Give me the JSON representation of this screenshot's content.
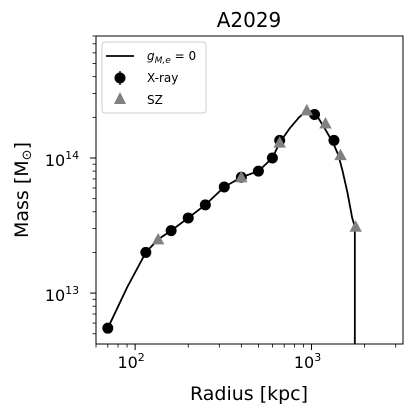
{
  "chart_data": {
    "type": "line",
    "title": "A2029",
    "xlabel": "Radius [kpc]",
    "ylabel": "Mass [M",
    "ylabel_symbol": "⊙",
    "ylabel_close": "]",
    "xscale": "log",
    "yscale": "log",
    "xlim": [
      60,
      3300
    ],
    "ylim": [
      4200000000000.0,
      800000000000000.0
    ],
    "grid": false,
    "legend_placement": "top-left",
    "x_ticks": [
      {
        "value": 100,
        "base": "10",
        "exp": "2"
      },
      {
        "value": 1000,
        "base": "10",
        "exp": "3"
      }
    ],
    "y_ticks": [
      {
        "value": 10000000000000.0,
        "base": "10",
        "exp": "13"
      },
      {
        "value": 100000000000000.0,
        "base": "10",
        "exp": "14"
      }
    ],
    "legend": [
      {
        "label": "g",
        "label_sub": "M,e",
        "label_rest": " = 0",
        "marker": "line",
        "color": "#000000"
      },
      {
        "label": "X-ray",
        "marker": "circle",
        "color": "#000000"
      },
      {
        "label": "SZ",
        "marker": "triangle",
        "color": "#808080"
      }
    ],
    "series": [
      {
        "name": "g",
        "style": "line",
        "color": "#000000",
        "x": [
          70,
          90,
          115,
          135,
          160,
          200,
          250,
          320,
          400,
          500,
          600,
          660,
          750,
          850,
          940,
          1020,
          1100,
          1180,
          1260,
          1340,
          1420,
          1500,
          1600,
          1700,
          1760,
          1760
        ],
        "y": [
          5500000000000.0,
          11000000000000.0,
          20000000000000.0,
          25000000000000.0,
          29000000000000.0,
          36000000000000.0,
          45000000000000.0,
          61000000000000.0,
          72000000000000.0,
          80000000000000.0,
          100000000000000.0,
          130000000000000.0,
          165000000000000.0,
          200000000000000.0,
          225000000000000.0,
          220000000000000.0,
          195000000000000.0,
          168000000000000.0,
          145000000000000.0,
          125000000000000.0,
          105000000000000.0,
          80000000000000.0,
          55000000000000.0,
          36000000000000.0,
          31000000000000.0,
          4200000000000.0
        ]
      },
      {
        "name": "X-ray",
        "style": "scatter",
        "marker": "circle",
        "color": "#000000",
        "x": [
          70,
          115,
          160,
          200,
          250,
          320,
          400,
          500,
          600,
          660,
          1040,
          1340
        ],
        "y": [
          5500000000000.0,
          20000000000000.0,
          29000000000000.0,
          36000000000000.0,
          45000000000000.0,
          61000000000000.0,
          72000000000000.0,
          80000000000000.0,
          100000000000000.0,
          135000000000000.0,
          210000000000000.0,
          135000000000000.0
        ]
      },
      {
        "name": "SZ",
        "style": "scatter",
        "marker": "triangle",
        "color": "#808080",
        "x": [
          135,
          400,
          660,
          940,
          1200,
          1460,
          1780
        ],
        "y": [
          25000000000000.0,
          72000000000000.0,
          130000000000000.0,
          225000000000000.0,
          180000000000000.0,
          105000000000000.0,
          31000000000000.0
        ]
      }
    ]
  }
}
